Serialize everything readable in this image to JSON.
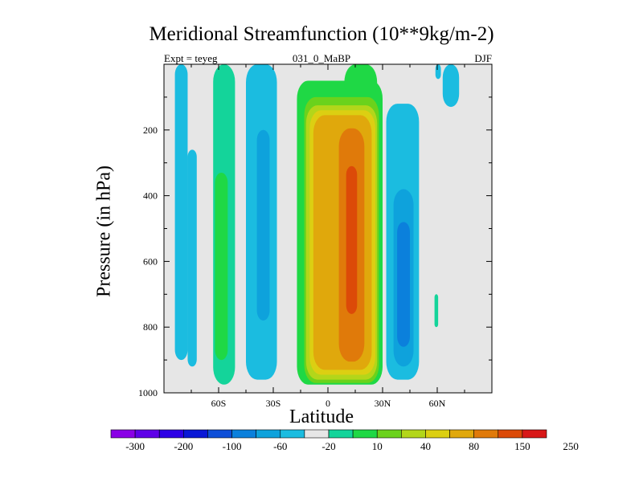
{
  "chart_data": {
    "type": "heatmap",
    "title": "Meridional Streamfunction (10**9kg/m-2)",
    "subtitle_left": "Expt = teyeg",
    "subtitle_center": "031_0_MaBP",
    "subtitle_right": "DJF",
    "xlabel": "Latitude",
    "ylabel": "Pressure (in hPa)",
    "xlim": [
      -90,
      90
    ],
    "ylim": [
      0,
      1000
    ],
    "y_reversed": true,
    "xticks": [
      {
        "value": -60,
        "label": "60S"
      },
      {
        "value": -30,
        "label": "30S"
      },
      {
        "value": 0,
        "label": "0"
      },
      {
        "value": 30,
        "label": "30N"
      },
      {
        "value": 60,
        "label": "60N"
      }
    ],
    "yticks": [
      {
        "value": 200,
        "label": "200"
      },
      {
        "value": 400,
        "label": "400"
      },
      {
        "value": 600,
        "label": "600"
      },
      {
        "value": 800,
        "label": "800"
      },
      {
        "value": 1000,
        "label": "1000"
      }
    ],
    "colorbar": {
      "colors": [
        "#8a00e6",
        "#5e00e8",
        "#2d00e6",
        "#0a18d6",
        "#0e4fd8",
        "#0b80dc",
        "#0ea2dc",
        "#1bbce0",
        "#e6e6e6",
        "#14d49a",
        "#1fd845",
        "#6bd21c",
        "#b3d61a",
        "#dccf12",
        "#e0a80c",
        "#e07a0a",
        "#dc4a08",
        "#d81818"
      ],
      "tick_labels": [
        "-300",
        "-200",
        "-100",
        "-60",
        "-20",
        "10",
        "40",
        "80",
        "150",
        "250"
      ]
    },
    "fields": [
      {
        "lat_min": -84,
        "lat_max": -77,
        "p_top": 0,
        "p_bottom": 900,
        "color": "#1bbce0"
      },
      {
        "lat_min": -77,
        "lat_max": -72,
        "p_top": 260,
        "p_bottom": 920,
        "color": "#1bbce0"
      },
      {
        "lat_min": -63,
        "lat_max": -51,
        "p_top": 0,
        "p_bottom": 975,
        "color": "#14d49a"
      },
      {
        "lat_min": -62,
        "lat_max": -55,
        "p_top": 330,
        "p_bottom": 900,
        "color": "#1fd845"
      },
      {
        "lat_min": -45,
        "lat_max": -28,
        "p_top": 0,
        "p_bottom": 960,
        "color": "#1bbce0"
      },
      {
        "lat_min": -39,
        "lat_max": -32,
        "p_top": 200,
        "p_bottom": 780,
        "color": "#0ea2dc"
      },
      {
        "lat_min": -17,
        "lat_max": 30,
        "p_top": 50,
        "p_bottom": 975,
        "color": "#1fd845"
      },
      {
        "lat_min": 9,
        "lat_max": 27,
        "p_top": 0,
        "p_bottom": 110,
        "color": "#1fd845"
      },
      {
        "lat_min": -13,
        "lat_max": 28,
        "p_top": 100,
        "p_bottom": 970,
        "color": "#6bd21c"
      },
      {
        "lat_min": -12,
        "lat_max": 27,
        "p_top": 125,
        "p_bottom": 960,
        "color": "#b3d61a"
      },
      {
        "lat_min": -10,
        "lat_max": 26,
        "p_top": 140,
        "p_bottom": 945,
        "color": "#dccf12"
      },
      {
        "lat_min": -8,
        "lat_max": 24,
        "p_top": 155,
        "p_bottom": 930,
        "color": "#e0a80c"
      },
      {
        "lat_min": 6,
        "lat_max": 20,
        "p_top": 195,
        "p_bottom": 905,
        "color": "#e07a0a"
      },
      {
        "lat_min": 10,
        "lat_max": 16,
        "p_top": 310,
        "p_bottom": 760,
        "color": "#dc4a08"
      },
      {
        "lat_min": 32,
        "lat_max": 50,
        "p_top": 120,
        "p_bottom": 960,
        "color": "#1bbce0"
      },
      {
        "lat_min": 36,
        "lat_max": 47,
        "p_top": 380,
        "p_bottom": 920,
        "color": "#0ea2dc"
      },
      {
        "lat_min": 38,
        "lat_max": 45,
        "p_top": 480,
        "p_bottom": 860,
        "color": "#0b80dc"
      },
      {
        "lat_min": 63,
        "lat_max": 72,
        "p_top": 0,
        "p_bottom": 130,
        "color": "#1bbce0"
      },
      {
        "lat_min": 59,
        "lat_max": 62,
        "p_top": 0,
        "p_bottom": 45,
        "color": "#1bbce0"
      },
      {
        "lat_min": 58.5,
        "lat_max": 60.5,
        "p_top": 700,
        "p_bottom": 800,
        "color": "#14d49a"
      }
    ]
  }
}
